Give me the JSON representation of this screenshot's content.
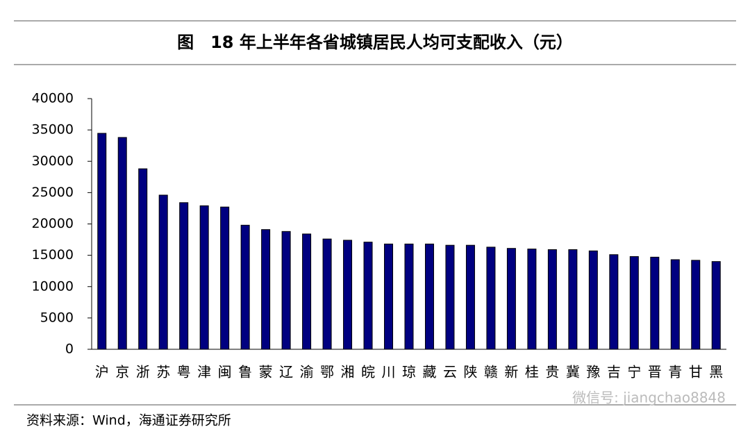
{
  "chart_data": {
    "type": "bar",
    "title": "图　18 年上半年各省城镇居民人均可支配收入（元）",
    "source": "资料来源：Wind，海通证券研究所",
    "watermark": "微信号: jiangchao8848",
    "categories": [
      "沪",
      "京",
      "浙",
      "苏",
      "粤",
      "津",
      "闽",
      "鲁",
      "蒙",
      "辽",
      "渝",
      "鄂",
      "湘",
      "皖",
      "川",
      "琼",
      "藏",
      "云",
      "陕",
      "赣",
      "新",
      "桂",
      "贵",
      "冀",
      "豫",
      "吉",
      "宁",
      "晋",
      "青",
      "甘",
      "黑"
    ],
    "values": [
      34460,
      33800,
      28800,
      24600,
      23400,
      22900,
      22700,
      19800,
      19100,
      18800,
      18400,
      17600,
      17400,
      17100,
      16800,
      16800,
      16800,
      16600,
      16600,
      16300,
      16100,
      16000,
      15900,
      15900,
      15700,
      15100,
      14800,
      14700,
      14300,
      14200,
      14000
    ],
    "color": "#000080",
    "ylim": [
      0,
      40000
    ],
    "yticks": [
      0,
      5000,
      10000,
      15000,
      20000,
      25000,
      30000,
      35000,
      40000
    ]
  }
}
